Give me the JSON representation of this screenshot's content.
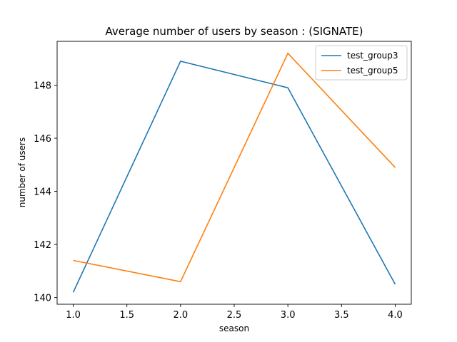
{
  "chart_data": {
    "type": "line",
    "title": "Average number of users by season : (SIGNATE)",
    "xlabel": "season",
    "ylabel": "number of users",
    "x": [
      1.0,
      2.0,
      3.0,
      4.0
    ],
    "xlim": [
      0.85,
      4.15
    ],
    "ylim": [
      139.75,
      149.65
    ],
    "xticks": [
      "1.0",
      "1.5",
      "2.0",
      "2.5",
      "3.0",
      "3.5",
      "4.0"
    ],
    "yticks": [
      "140",
      "142",
      "144",
      "146",
      "148"
    ],
    "grid": false,
    "legend_position": "upper right",
    "series": [
      {
        "name": "test_group3",
        "color": "#1f77b4",
        "values": [
          140.2,
          148.9,
          147.9,
          140.5
        ]
      },
      {
        "name": "test_group5",
        "color": "#ff7f0e",
        "values": [
          141.4,
          140.6,
          149.2,
          144.9
        ]
      }
    ]
  }
}
